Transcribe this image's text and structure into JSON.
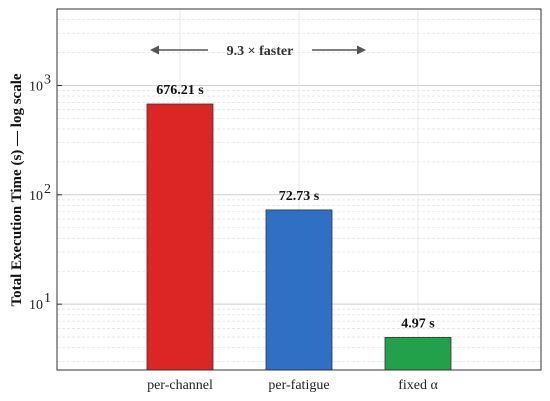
{
  "chart_data": {
    "type": "bar",
    "scale": "log",
    "categories": [
      "per-channel",
      "per-fatigue",
      "fixed α"
    ],
    "values": [
      676.21,
      72.73,
      4.97
    ],
    "value_labels": [
      "676.21 s",
      "72.73 s",
      "4.97 s"
    ],
    "colors": [
      "#dc2626",
      "#2f6fc4",
      "#22a04a"
    ],
    "ylabel": "Total Execution Time (s) — log scale",
    "ylim": [
      2.5,
      5000
    ],
    "yticks": [
      10,
      100,
      1000
    ],
    "ytick_labels": [
      {
        "base": "10",
        "exp": "1"
      },
      {
        "base": "10",
        "exp": "2"
      },
      {
        "base": "10",
        "exp": "3"
      }
    ],
    "grid": true,
    "annotation": {
      "text": "9.3 ×  faster"
    }
  }
}
